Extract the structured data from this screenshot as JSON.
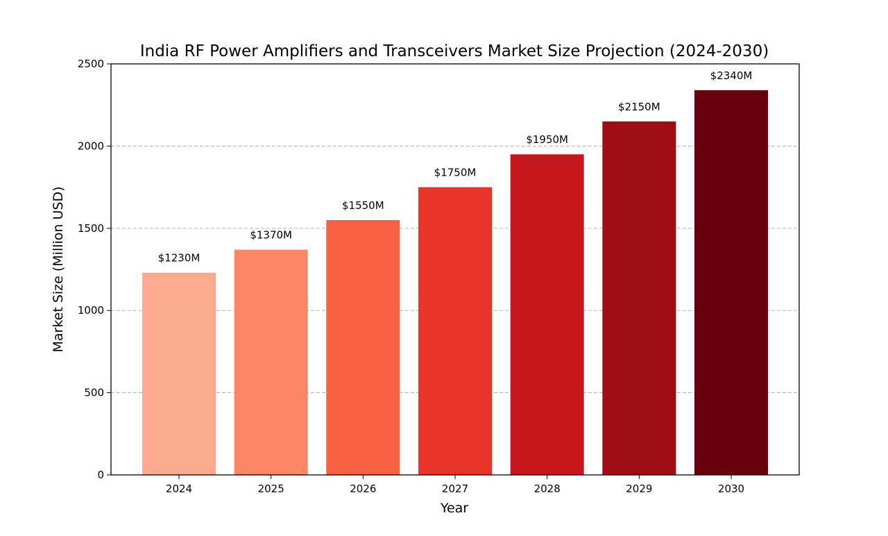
{
  "chart_data": {
    "type": "bar",
    "title": "India RF Power Amplifiers and Transceivers Market Size Projection (2024-2030)",
    "xlabel": "Year",
    "ylabel": "Market Size (Million USD)",
    "categories": [
      "2024",
      "2025",
      "2026",
      "2027",
      "2028",
      "2029",
      "2030"
    ],
    "values": [
      1230,
      1370,
      1550,
      1750,
      1950,
      2150,
      2340
    ],
    "data_labels": [
      "$1230M",
      "$1370M",
      "$1550M",
      "$1750M",
      "$1950M",
      "$2150M",
      "$2340M"
    ],
    "bar_colors": [
      "#fcab8f",
      "#fc8767",
      "#f85f43",
      "#e83429",
      "#c5171c",
      "#9e0e14",
      "#67000d"
    ],
    "ylim": [
      0,
      2500
    ],
    "yticks": [
      0,
      500,
      1000,
      1500,
      2000,
      2500
    ],
    "ytick_labels": [
      "0",
      "500",
      "1000",
      "1500",
      "2000",
      "2500"
    ],
    "grid": "y-dashed",
    "legend": "none"
  }
}
